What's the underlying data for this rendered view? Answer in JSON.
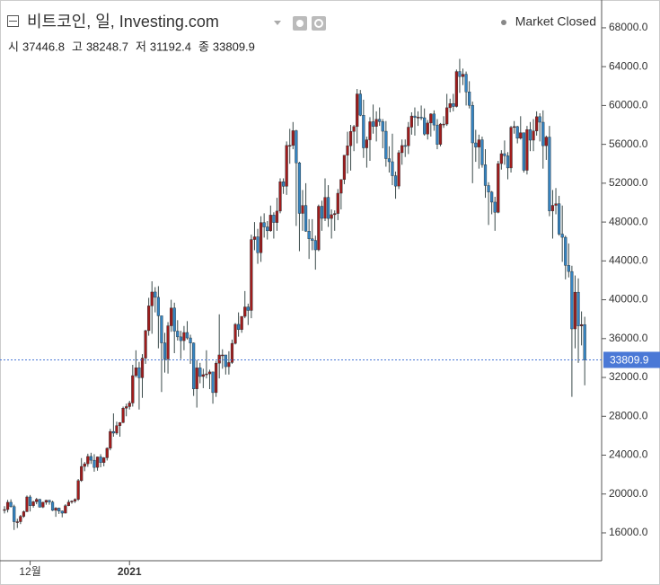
{
  "chart_data": {
    "type": "candlestick",
    "title": "비트코인, 일, Investing.com",
    "status": "Market Closed",
    "ohlc_labels": [
      "시",
      "고",
      "저",
      "종"
    ],
    "up_color": "#a01c1c",
    "down_color": "#3583c0",
    "current_color": "#4a78d6",
    "ylim": [
      13130,
      70400
    ],
    "yticks": [
      {
        "value": 16000,
        "label": "16000.0"
      },
      {
        "value": 20000,
        "label": "20000.0"
      },
      {
        "value": 24000,
        "label": "24000.0"
      },
      {
        "value": 28000,
        "label": "28000.0"
      },
      {
        "value": 32000,
        "label": "32000.0"
      },
      {
        "value": 36000,
        "label": "36000.0"
      },
      {
        "value": 40000,
        "label": "40000.0"
      },
      {
        "value": 44000,
        "label": "44000.0"
      },
      {
        "value": 48000,
        "label": "48000.0"
      },
      {
        "value": 52000,
        "label": "52000.0"
      },
      {
        "value": 56000,
        "label": "56000.0"
      },
      {
        "value": 60000,
        "label": "60000.0"
      },
      {
        "value": 64000,
        "label": "64000.0"
      },
      {
        "value": 68000,
        "label": "68000.0"
      }
    ],
    "categories": [
      null,
      null,
      null,
      null,
      null,
      null,
      null,
      null,
      "12월",
      null,
      null,
      null,
      null,
      null,
      null,
      null,
      null,
      null,
      null,
      null,
      null,
      null,
      null,
      null,
      null,
      null,
      null,
      null,
      null,
      null,
      null,
      null,
      null,
      null,
      null,
      null,
      null,
      null,
      null,
      "2021",
      null,
      null,
      null,
      null,
      null,
      null,
      null,
      null,
      null,
      null,
      null,
      null,
      null,
      null,
      null,
      null,
      null,
      null,
      null,
      null,
      null,
      null,
      null,
      null,
      null,
      null,
      null,
      null,
      null,
      null,
      null,
      null,
      null,
      null,
      null,
      null,
      null,
      null,
      null,
      null,
      null,
      null,
      null,
      null,
      null,
      null,
      null,
      null,
      null,
      null,
      null,
      null,
      null,
      null,
      null,
      null,
      null,
      null,
      null,
      null,
      null,
      null,
      null,
      null,
      null,
      null,
      null,
      null,
      null,
      null,
      null,
      null,
      null,
      null,
      null,
      null,
      null,
      null,
      null,
      null,
      null,
      null,
      null,
      null,
      null,
      null,
      null,
      null,
      null,
      null,
      null,
      null,
      null,
      null,
      null,
      null,
      null,
      null,
      null,
      null,
      null,
      null,
      null,
      null,
      null,
      null,
      null,
      null,
      null,
      null,
      null,
      null,
      null,
      null,
      null,
      null,
      null,
      null,
      null,
      null,
      null,
      null,
      null,
      null,
      null,
      null,
      null,
      null,
      null,
      null,
      null,
      null,
      null,
      null,
      null,
      null,
      null,
      null,
      null,
      null,
      null,
      null,
      null
    ],
    "ohlc": [
      [
        18370,
        18750,
        18000,
        18400
      ],
      [
        18400,
        19400,
        18100,
        19150
      ],
      [
        19150,
        19450,
        18600,
        18700
      ],
      [
        18700,
        18900,
        16300,
        17150
      ],
      [
        17150,
        17450,
        16500,
        17150
      ],
      [
        17150,
        17850,
        16900,
        17700
      ],
      [
        17700,
        18300,
        17550,
        18180
      ],
      [
        18180,
        19850,
        18150,
        19700
      ],
      [
        19700,
        19900,
        18200,
        18800
      ],
      [
        18800,
        19300,
        18600,
        19200
      ],
      [
        19200,
        19600,
        18950,
        19450
      ],
      [
        19450,
        19500,
        18600,
        18650
      ],
      [
        18650,
        19200,
        18550,
        19150
      ],
      [
        19150,
        19400,
        18900,
        19360
      ],
      [
        19360,
        19400,
        18900,
        19170
      ],
      [
        19170,
        19300,
        18250,
        18320
      ],
      [
        18320,
        18650,
        17650,
        18550
      ],
      [
        18550,
        18600,
        17950,
        18250
      ],
      [
        18250,
        18300,
        17600,
        18030
      ],
      [
        18030,
        18950,
        18000,
        18800
      ],
      [
        18800,
        19400,
        18750,
        19160
      ],
      [
        19160,
        19350,
        19000,
        19270
      ],
      [
        19270,
        19550,
        19080,
        19440
      ],
      [
        19440,
        21550,
        19300,
        21380
      ],
      [
        21380,
        23700,
        21250,
        22840
      ],
      [
        22840,
        23300,
        22350,
        23110
      ],
      [
        23110,
        24150,
        22800,
        23870
      ],
      [
        23870,
        24250,
        23100,
        23480
      ],
      [
        23480,
        24100,
        22300,
        22740
      ],
      [
        22740,
        23850,
        22400,
        23820
      ],
      [
        23820,
        24100,
        22750,
        23240
      ],
      [
        23240,
        23800,
        22850,
        23730
      ],
      [
        23730,
        24800,
        23450,
        24710
      ],
      [
        24710,
        26700,
        24500,
        26440
      ],
      [
        26440,
        28300,
        25900,
        26270
      ],
      [
        26270,
        27450,
        26100,
        27040
      ],
      [
        27040,
        27400,
        25900,
        27360
      ],
      [
        27360,
        29000,
        27300,
        28840
      ],
      [
        28840,
        29300,
        28000,
        29000
      ],
      [
        29000,
        29600,
        28700,
        29370
      ],
      [
        29370,
        33300,
        29000,
        32190
      ],
      [
        32190,
        34800,
        32000,
        33000
      ],
      [
        33000,
        33600,
        28700,
        31970
      ],
      [
        31970,
        34400,
        29900,
        33990
      ],
      [
        33990,
        36900,
        33400,
        36820
      ],
      [
        36820,
        40200,
        36300,
        39370
      ],
      [
        39370,
        41900,
        36500,
        40800
      ],
      [
        40800,
        41300,
        38700,
        40250
      ],
      [
        40250,
        41400,
        35000,
        38350
      ],
      [
        38350,
        38350,
        30500,
        35560
      ],
      [
        35560,
        36600,
        32500,
        33900
      ],
      [
        33900,
        37700,
        32400,
        37320
      ],
      [
        37320,
        40000,
        36700,
        39150
      ],
      [
        39150,
        39700,
        34500,
        36770
      ],
      [
        36770,
        37900,
        35800,
        36180
      ],
      [
        36180,
        36800,
        33900,
        35790
      ],
      [
        35790,
        37300,
        34800,
        36630
      ],
      [
        36630,
        37800,
        35900,
        36070
      ],
      [
        36070,
        36400,
        33400,
        35550
      ],
      [
        35550,
        35600,
        30100,
        30830
      ],
      [
        30830,
        33800,
        28900,
        32990
      ],
      [
        32990,
        33500,
        31400,
        32100
      ],
      [
        32100,
        32900,
        30900,
        32290
      ],
      [
        32290,
        34800,
        31900,
        32370
      ],
      [
        32370,
        32800,
        30800,
        32570
      ],
      [
        32570,
        32600,
        29300,
        30440
      ],
      [
        30440,
        33700,
        30000,
        33470
      ],
      [
        33470,
        38500,
        31900,
        34320
      ],
      [
        34320,
        34900,
        32900,
        34320
      ],
      [
        34320,
        34300,
        32300,
        33110
      ],
      [
        33110,
        34700,
        32300,
        33540
      ],
      [
        33540,
        35900,
        33400,
        35510
      ],
      [
        35510,
        37600,
        35400,
        37470
      ],
      [
        37470,
        38700,
        36200,
        36930
      ],
      [
        36930,
        38300,
        36600,
        38290
      ],
      [
        38290,
        40900,
        38100,
        39260
      ],
      [
        39260,
        39600,
        37400,
        38900
      ],
      [
        38900,
        46700,
        38100,
        46200
      ],
      [
        46200,
        48000,
        45100,
        46480
      ],
      [
        46480,
        47300,
        43700,
        44840
      ],
      [
        44840,
        48600,
        43900,
        47950
      ],
      [
        47950,
        48900,
        46400,
        47500
      ],
      [
        47500,
        48100,
        46200,
        47100
      ],
      [
        47100,
        49700,
        47000,
        48720
      ],
      [
        48720,
        49000,
        46300,
        47950
      ],
      [
        47950,
        50500,
        47100,
        49130
      ],
      [
        49130,
        52500,
        48900,
        52150
      ],
      [
        52150,
        52500,
        50900,
        51680
      ],
      [
        51680,
        56300,
        50800,
        55890
      ],
      [
        55890,
        57600,
        54000,
        55890
      ],
      [
        55890,
        58300,
        55500,
        57410
      ],
      [
        57410,
        57500,
        47600,
        54090
      ],
      [
        54090,
        54200,
        45000,
        48890
      ],
      [
        48890,
        51300,
        47100,
        49710
      ],
      [
        49710,
        52000,
        47000,
        47060
      ],
      [
        47060,
        48300,
        44200,
        46280
      ],
      [
        46280,
        48300,
        45100,
        46110
      ],
      [
        46110,
        46600,
        43100,
        45140
      ],
      [
        45140,
        49800,
        45000,
        49630
      ],
      [
        49630,
        50200,
        47100,
        48380
      ],
      [
        48380,
        52500,
        48100,
        50540
      ],
      [
        50540,
        51800,
        47500,
        48370
      ],
      [
        48370,
        49300,
        46300,
        48760
      ],
      [
        48760,
        49200,
        47100,
        48880
      ],
      [
        48880,
        51400,
        48200,
        50970
      ],
      [
        50970,
        52400,
        49300,
        52380
      ],
      [
        52380,
        54900,
        51900,
        54880
      ],
      [
        54880,
        57300,
        53000,
        55850
      ],
      [
        55850,
        58000,
        53300,
        57330
      ],
      [
        57330,
        58000,
        55300,
        57830
      ],
      [
        57830,
        61700,
        56100,
        61190
      ],
      [
        61190,
        61600,
        58900,
        59000
      ],
      [
        59000,
        60600,
        54600,
        55640
      ],
      [
        55640,
        56800,
        53600,
        56470
      ],
      [
        56470,
        58800,
        54300,
        58330
      ],
      [
        58330,
        60100,
        57100,
        57850
      ],
      [
        57850,
        59400,
        56300,
        58580
      ],
      [
        58580,
        59800,
        57900,
        58340
      ],
      [
        58340,
        58600,
        55600,
        57350
      ],
      [
        57350,
        58400,
        53700,
        54530
      ],
      [
        54530,
        55800,
        53100,
        54210
      ],
      [
        54210,
        57100,
        51800,
        52770
      ],
      [
        52770,
        53200,
        50400,
        51700
      ],
      [
        51700,
        55400,
        51400,
        55140
      ],
      [
        55140,
        56500,
        53900,
        55880
      ],
      [
        55880,
        56500,
        54700,
        55850
      ],
      [
        55850,
        58300,
        55000,
        57770
      ],
      [
        57770,
        59300,
        57000,
        58920
      ],
      [
        58920,
        59800,
        56900,
        58770
      ],
      [
        58770,
        59400,
        57900,
        58800
      ],
      [
        58800,
        60000,
        58500,
        58740
      ],
      [
        58740,
        59700,
        56900,
        57060
      ],
      [
        57060,
        58500,
        56500,
        58200
      ],
      [
        58200,
        59200,
        56800,
        59130
      ],
      [
        59130,
        59500,
        57400,
        57990
      ],
      [
        57990,
        58600,
        55500,
        56000
      ],
      [
        56000,
        58200,
        55800,
        58090
      ],
      [
        58090,
        58900,
        57700,
        58090
      ],
      [
        58090,
        61200,
        57900,
        59770
      ],
      [
        59770,
        60700,
        59300,
        60200
      ],
      [
        60200,
        61200,
        59400,
        59900
      ],
      [
        59900,
        63700,
        59800,
        63500
      ],
      [
        63500,
        64800,
        61300,
        62980
      ],
      [
        62980,
        63800,
        62100,
        63220
      ],
      [
        63220,
        63500,
        60000,
        61400
      ],
      [
        61400,
        62500,
        59700,
        60020
      ],
      [
        60020,
        60400,
        52000,
        56150
      ],
      [
        56150,
        57500,
        54200,
        55720
      ],
      [
        55720,
        57000,
        53500,
        56470
      ],
      [
        56470,
        56800,
        53600,
        53900
      ],
      [
        53900,
        55500,
        50500,
        51760
      ],
      [
        51760,
        52100,
        47700,
        51090
      ],
      [
        51090,
        51200,
        48800,
        50050
      ],
      [
        50050,
        50600,
        47100,
        49000
      ],
      [
        49000,
        54300,
        48900,
        54020
      ],
      [
        54020,
        55400,
        53400,
        55040
      ],
      [
        55040,
        56400,
        53900,
        54820
      ],
      [
        54820,
        55200,
        52400,
        53570
      ],
      [
        53570,
        57900,
        53100,
        57750
      ],
      [
        57750,
        58400,
        57100,
        57830
      ],
      [
        57830,
        57900,
        56100,
        56630
      ],
      [
        56630,
        58900,
        56500,
        57200
      ],
      [
        57200,
        57200,
        53100,
        53330
      ],
      [
        53330,
        57900,
        52900,
        57520
      ],
      [
        57520,
        58300,
        55300,
        56430
      ],
      [
        56430,
        58600,
        55300,
        57380
      ],
      [
        57380,
        59400,
        56900,
        58850
      ],
      [
        58850,
        59200,
        56300,
        58280
      ],
      [
        58280,
        59500,
        53500,
        55860
      ],
      [
        55860,
        56900,
        54400,
        56750
      ],
      [
        56750,
        57900,
        48600,
        49150
      ],
      [
        49150,
        51300,
        46300,
        49720
      ],
      [
        49720,
        51500,
        48800,
        49880
      ],
      [
        49880,
        50700,
        46600,
        46760
      ],
      [
        46760,
        49700,
        43900,
        46430
      ],
      [
        46430,
        46600,
        42100,
        43540
      ],
      [
        43540,
        45800,
        42300,
        42910
      ],
      [
        42910,
        43500,
        30000,
        37000
      ],
      [
        37000,
        42500,
        35000,
        40780
      ],
      [
        40780,
        42200,
        33500,
        37300
      ],
      [
        37300,
        38800,
        35300,
        37446.8
      ],
      [
        37446.8,
        38248.7,
        31192.4,
        33809.9
      ]
    ]
  }
}
